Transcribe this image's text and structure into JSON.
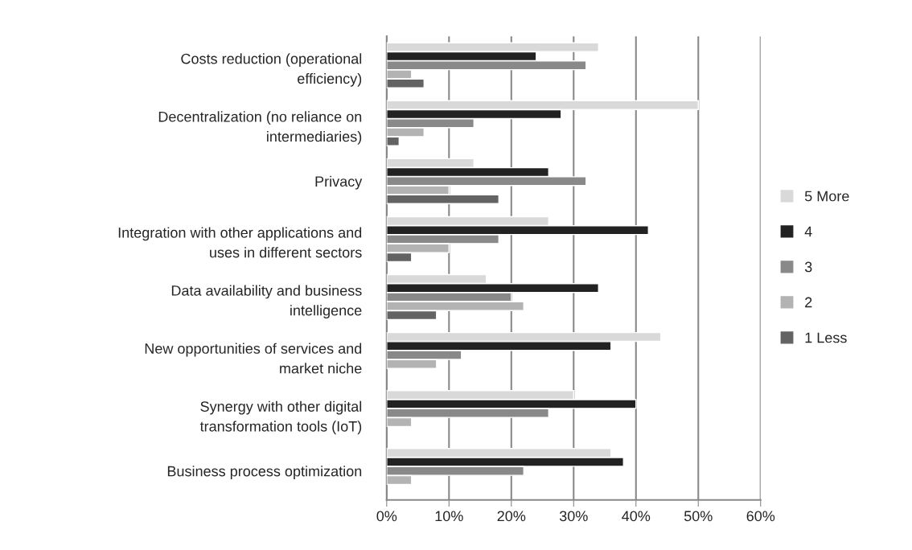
{
  "chart_data": {
    "type": "bar",
    "orientation": "horizontal",
    "categories": [
      "Costs reduction (operational efficiency)",
      "Decentralization (no reliance on intermediaries)",
      "Privacy",
      "Integration with other applications and uses in different sectors",
      "Data availability and business intelligence",
      "New opportunities of services and market niche",
      "Synergy with other digital transformation tools (IoT)",
      "Business process optimization"
    ],
    "series": [
      {
        "name": "5 More",
        "color": "#d9d9d9",
        "values": [
          34,
          50,
          14,
          26,
          16,
          44,
          30,
          36
        ]
      },
      {
        "name": "4",
        "color": "#222222",
        "values": [
          24,
          28,
          26,
          42,
          34,
          36,
          40,
          38
        ]
      },
      {
        "name": "3",
        "color": "#898989",
        "values": [
          32,
          14,
          32,
          18,
          20,
          12,
          26,
          22
        ]
      },
      {
        "name": "2",
        "color": "#b3b3b3",
        "values": [
          4,
          6,
          10,
          10,
          22,
          8,
          4,
          4
        ]
      },
      {
        "name": "1 Less",
        "color": "#636363",
        "values": [
          6,
          2,
          18,
          4,
          8,
          null,
          null,
          null
        ]
      }
    ],
    "xlim": [
      0,
      60
    ],
    "xticks": [
      {
        "value": 0,
        "label": "0%"
      },
      {
        "value": 10,
        "label": "10%"
      },
      {
        "value": 20,
        "label": "20%"
      },
      {
        "value": 30,
        "label": "30%"
      },
      {
        "value": 40,
        "label": "40%"
      },
      {
        "value": 50,
        "label": "50%"
      },
      {
        "value": 60,
        "label": "60%"
      }
    ],
    "grid": "x",
    "legend": "right"
  }
}
